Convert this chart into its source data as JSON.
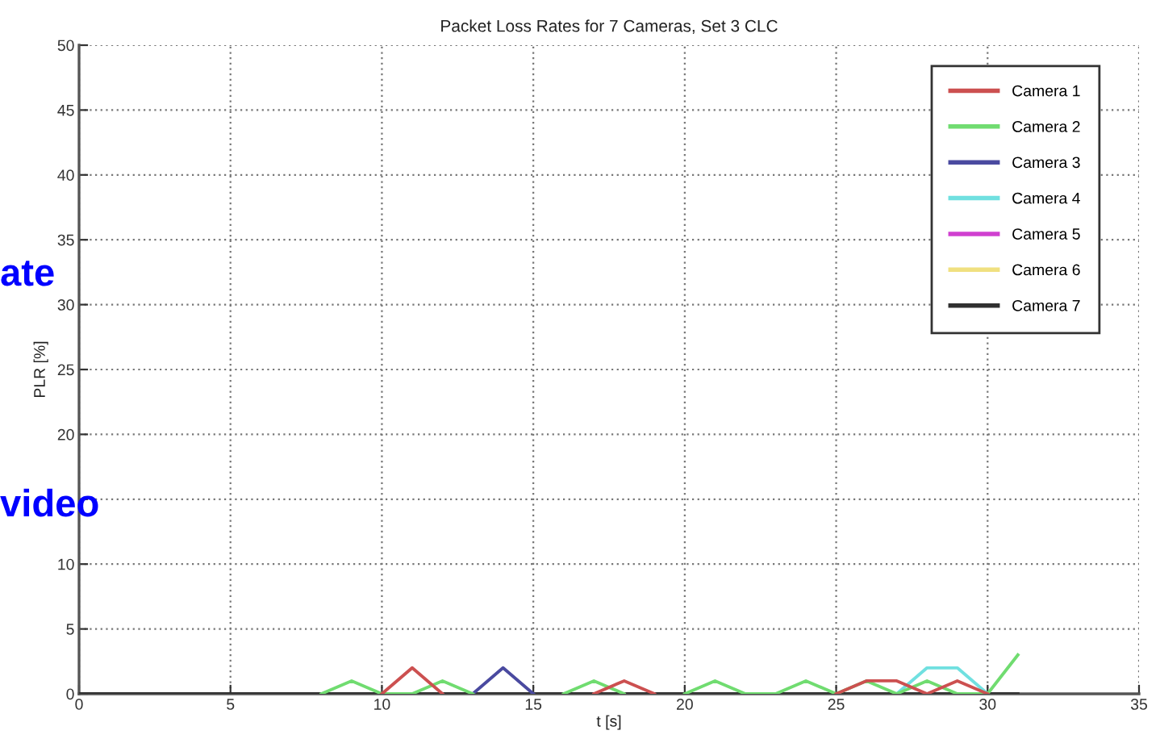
{
  "chart_data": {
    "type": "line",
    "title": "Packet Loss Rates for 7 Cameras, Set 3 CLC",
    "xlabel": "t [s]",
    "ylabel": "PLR [%]",
    "x": [
      0,
      1,
      2,
      3,
      4,
      5,
      6,
      7,
      8,
      9,
      10,
      11,
      12,
      13,
      14,
      15,
      16,
      17,
      18,
      19,
      20,
      21,
      22,
      23,
      24,
      25,
      26,
      27,
      28,
      29,
      30,
      31
    ],
    "series": [
      {
        "name": "Camera 1",
        "color": "#cc5050",
        "values": [
          null,
          null,
          null,
          null,
          null,
          null,
          null,
          null,
          null,
          null,
          0,
          2,
          0,
          null,
          null,
          null,
          null,
          0,
          1,
          0,
          null,
          null,
          null,
          null,
          null,
          0,
          1,
          1,
          0,
          1,
          0,
          null
        ]
      },
      {
        "name": "Camera 2",
        "color": "#70dc70",
        "values": [
          null,
          null,
          null,
          null,
          null,
          null,
          null,
          null,
          0,
          1,
          0,
          0,
          1,
          0,
          null,
          null,
          0,
          1,
          0,
          null,
          0,
          1,
          0,
          0,
          1,
          0,
          1,
          0,
          1,
          0,
          0,
          3
        ]
      },
      {
        "name": "Camera 3",
        "color": "#4a4aa0",
        "values": [
          null,
          null,
          null,
          null,
          null,
          null,
          null,
          null,
          null,
          null,
          null,
          null,
          null,
          0,
          2,
          0,
          null,
          null,
          null,
          null,
          null,
          null,
          null,
          null,
          null,
          null,
          null,
          null,
          null,
          null,
          null,
          null
        ]
      },
      {
        "name": "Camera 4",
        "color": "#70e0e0",
        "values": [
          null,
          null,
          null,
          null,
          null,
          null,
          null,
          null,
          null,
          null,
          null,
          null,
          null,
          null,
          null,
          null,
          null,
          null,
          null,
          null,
          null,
          null,
          null,
          null,
          null,
          null,
          null,
          0,
          2,
          2,
          0,
          null
        ]
      },
      {
        "name": "Camera 5",
        "color": "#d040d0",
        "values": [
          null,
          null,
          null,
          null,
          null,
          null,
          null,
          null,
          null,
          null,
          null,
          null,
          null,
          null,
          null,
          null,
          null,
          null,
          null,
          null,
          null,
          null,
          null,
          null,
          null,
          null,
          null,
          null,
          null,
          null,
          null,
          null
        ]
      },
      {
        "name": "Camera 6",
        "color": "#f0e080",
        "values": [
          null,
          null,
          null,
          null,
          null,
          null,
          null,
          null,
          null,
          null,
          null,
          null,
          null,
          null,
          null,
          null,
          null,
          null,
          null,
          null,
          null,
          null,
          null,
          null,
          null,
          null,
          null,
          null,
          null,
          null,
          null,
          null
        ]
      },
      {
        "name": "Camera 7",
        "color": "#303030",
        "values": [
          0,
          0,
          0,
          0,
          0,
          0,
          0,
          0,
          0,
          0,
          0,
          0,
          0,
          0,
          0,
          0,
          0,
          0,
          0,
          0,
          0,
          0,
          0,
          0,
          0,
          0,
          0,
          0,
          0,
          0,
          0,
          0
        ]
      }
    ],
    "xlim": [
      0,
      35
    ],
    "xticks": [
      0,
      5,
      10,
      15,
      20,
      25,
      30,
      35
    ],
    "ylim": [
      0,
      50
    ],
    "yticks": [
      0,
      5,
      10,
      {
        "value": 15,
        "label": null
      },
      20,
      25,
      30,
      35,
      40,
      45,
      50
    ],
    "grid": true,
    "legend": "top right",
    "line_style": "solid",
    "marker": "none",
    "annotations": [
      "ate",
      "video"
    ]
  }
}
